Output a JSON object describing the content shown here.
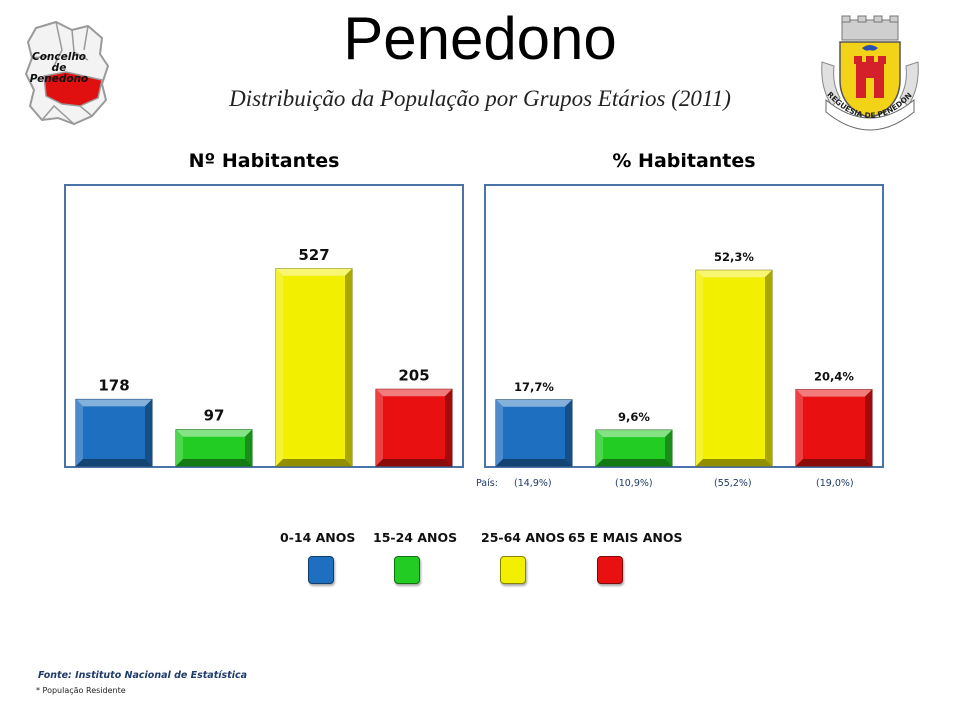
{
  "header": {
    "title": "Penedono",
    "subtitle": "Distribuição da População por Grupos Etários (2011)",
    "logo_text": [
      "Concelho",
      "de",
      "Penedono"
    ],
    "crest_text": "FREGUESIA DE PENEDONO"
  },
  "chart_data": [
    {
      "type": "bar",
      "title": "Nº Habitantes",
      "categories": [
        "0-14 ANOS",
        "15-24 ANOS",
        "25-64 ANOS",
        "65 E MAIS ANOS"
      ],
      "values": [
        178,
        97,
        527,
        205
      ],
      "value_labels": [
        "178",
        "97",
        "527",
        "205"
      ],
      "ylim": [
        0,
        700
      ],
      "colors": [
        "#1f6fc0",
        "#22cc22",
        "#f2ef00",
        "#e81010"
      ]
    },
    {
      "type": "bar",
      "title": "% Habitantes",
      "categories": [
        "0-14 ANOS",
        "15-24 ANOS",
        "25-64 ANOS",
        "65 E MAIS ANOS"
      ],
      "values": [
        17.7,
        9.6,
        52.3,
        20.4
      ],
      "value_labels": [
        "17,7%",
        "9,6%",
        "52,3%",
        "20,4%"
      ],
      "ylim": [
        0,
        70
      ],
      "colors": [
        "#1f6fc0",
        "#22cc22",
        "#f2ef00",
        "#e81010"
      ],
      "country_label": "País:",
      "country_values": [
        "(14,9%)",
        "(10,9%)",
        "(55,2%)",
        "(19,0%)"
      ]
    }
  ],
  "legend": [
    {
      "label": "0-14 ANOS",
      "color": "#1f6fc0"
    },
    {
      "label": "15-24 ANOS",
      "color": "#22cc22"
    },
    {
      "label": "25-64 ANOS",
      "color": "#f2ef00"
    },
    {
      "label": "65 E MAIS ANOS",
      "color": "#e81010"
    }
  ],
  "footer": {
    "source": "Fonte: Instituto Nacional de Estatística",
    "note": "* População Residente"
  }
}
